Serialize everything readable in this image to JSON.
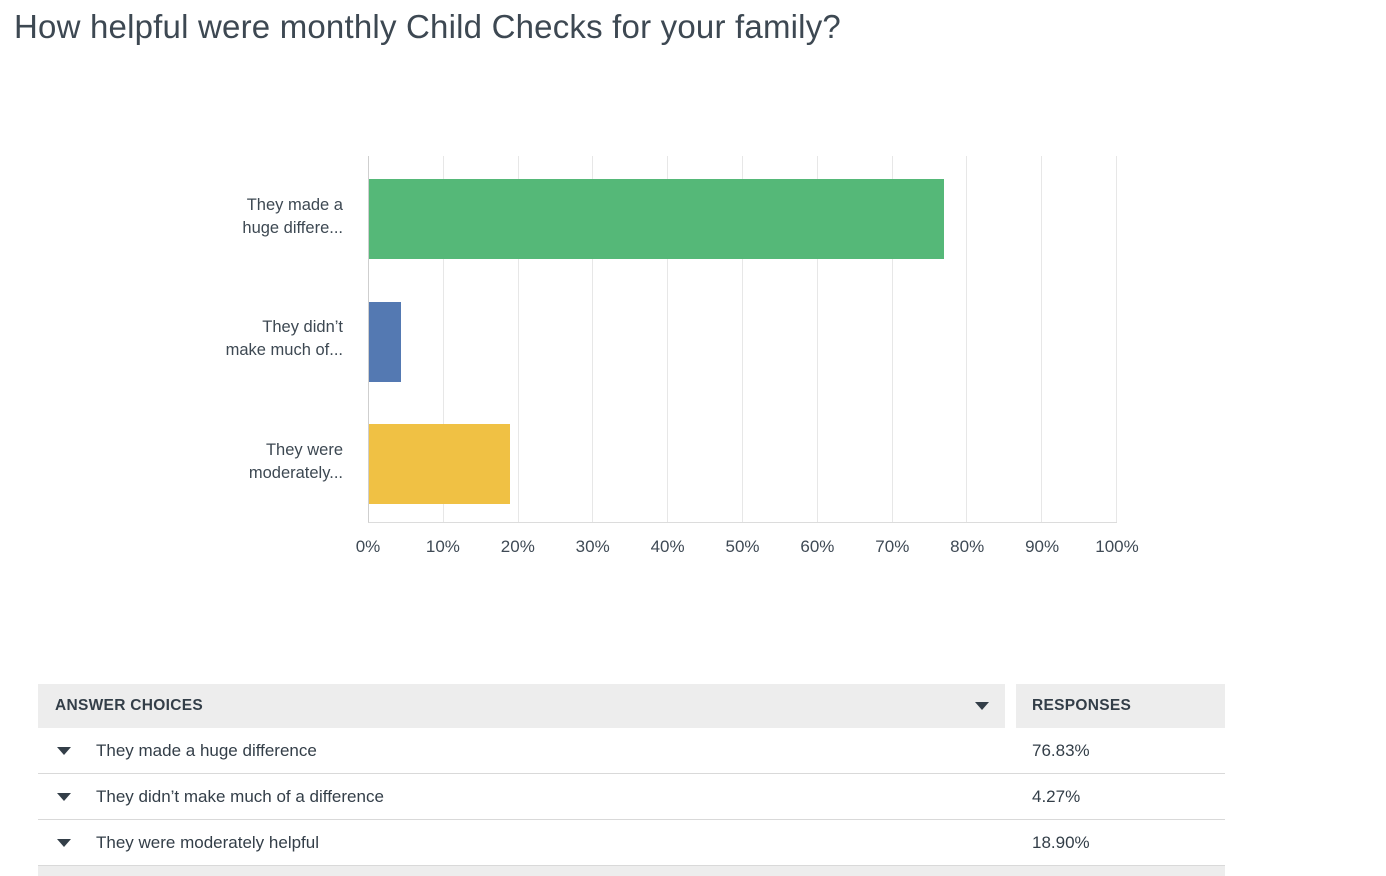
{
  "page": {
    "title": "How helpful were monthly Child Checks for your family?"
  },
  "colors": {
    "bar_green": "#55b878",
    "bar_blue": "#5479b2",
    "bar_yellow": "#f0c144",
    "text": "#333e48",
    "header_bg": "#ededed",
    "gridline": "#e7e7e7",
    "divider": "#d9d9d9"
  },
  "chart_data": {
    "type": "bar",
    "orientation": "horizontal",
    "title": "How helpful were monthly Child Checks for your family?",
    "categories": [
      "They made a huge difference",
      "They didn’t make much of a difference",
      "They were moderately helpful"
    ],
    "category_labels_display": [
      [
        "They made a",
        "huge differe..."
      ],
      [
        "They didn’t",
        "make much of..."
      ],
      [
        "They were",
        "moderately..."
      ]
    ],
    "values": [
      76.83,
      4.27,
      18.9
    ],
    "bar_colors": [
      "#55b878",
      "#5479b2",
      "#f0c144"
    ],
    "xlim": [
      0,
      100
    ],
    "xticks": [
      0,
      10,
      20,
      30,
      40,
      50,
      60,
      70,
      80,
      90,
      100
    ],
    "xtick_labels": [
      "0%",
      "10%",
      "20%",
      "30%",
      "40%",
      "50%",
      "60%",
      "70%",
      "80%",
      "90%",
      "100%"
    ],
    "grid": true,
    "legend": false
  },
  "table": {
    "headers": {
      "answer_choices": "ANSWER CHOICES",
      "responses": "RESPONSES"
    },
    "rows": [
      {
        "label": "They made a huge difference",
        "response": "76.83%"
      },
      {
        "label": "They didn’t make much of a difference",
        "response": "4.27%"
      },
      {
        "label": "They were moderately helpful",
        "response": "18.90%"
      }
    ]
  },
  "icons": {
    "sort_dropdown": "triangle-down",
    "row_expand": "triangle-down"
  }
}
